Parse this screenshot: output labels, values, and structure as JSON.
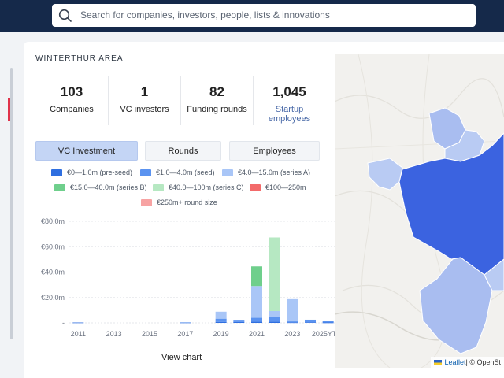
{
  "search": {
    "placeholder": "Search for companies, investors, people, lists & innovations"
  },
  "area": {
    "title": "WINTERTHUR AREA"
  },
  "stats": [
    {
      "value": "103",
      "label": "Companies"
    },
    {
      "value": "1",
      "label": "VC investors"
    },
    {
      "value": "82",
      "label": "Funding rounds"
    },
    {
      "value": "1,045",
      "label": "Startup employees"
    }
  ],
  "tabs": [
    {
      "label": "VC Investment",
      "active": true
    },
    {
      "label": "Rounds",
      "active": false
    },
    {
      "label": "Employees",
      "active": false
    }
  ],
  "legend": [
    {
      "label": "€0—1.0m (pre-seed)",
      "color": "#2f6fe0"
    },
    {
      "label": "€1.0—4.0m (seed)",
      "color": "#5b93f0"
    },
    {
      "label": "€4.0—15.0m (series A)",
      "color": "#a9c6f7"
    },
    {
      "label": "€15.0—40.0m (series B)",
      "color": "#6fcf8c"
    },
    {
      "label": "€40.0—100m (series C)",
      "color": "#b6e8c2"
    },
    {
      "label": "€100—250m",
      "color": "#f36a6a"
    },
    {
      "label": "€250m+ round size",
      "color": "#f7a3a3"
    }
  ],
  "chart_data": {
    "type": "bar",
    "stacked": true,
    "categories": [
      "2011",
      "2012",
      "2013",
      "2014",
      "2015",
      "2016",
      "2017",
      "2018",
      "2019",
      "2020",
      "2021",
      "2022",
      "2023",
      "2024",
      "2025YTD*"
    ],
    "x_tick_labels": [
      "2011",
      "2013",
      "2015",
      "2017",
      "2019",
      "2021",
      "2023",
      "2025YTD*"
    ],
    "y_tick_labels": [
      "€80.0m",
      "€60.0m",
      "€40.0m",
      "€20.0m",
      "-"
    ],
    "ylim": [
      0,
      80
    ],
    "series": [
      {
        "name": "€0—1.0m (pre-seed)",
        "color": "#2f6fe0",
        "values": [
          0.3,
          0,
          0,
          0,
          0,
          0,
          0.3,
          0,
          0.8,
          0.8,
          1.0,
          1.0,
          0.4,
          0.5,
          0.3
        ]
      },
      {
        "name": "€1.0—4.0m (seed)",
        "color": "#5b93f0",
        "values": [
          0,
          0,
          0,
          0,
          0,
          0,
          0,
          0,
          2.5,
          1.6,
          3.0,
          3.8,
          0.8,
          2.0,
          1.2
        ]
      },
      {
        "name": "€4.0—15.0m (series A)",
        "color": "#a9c6f7",
        "values": [
          0,
          0,
          0,
          0,
          0,
          0,
          0.3,
          0,
          5.5,
          0,
          25.0,
          4.5,
          17.5,
          0,
          0
        ]
      },
      {
        "name": "€15.0—40.0m (series B)",
        "color": "#6fcf8c",
        "values": [
          0,
          0,
          0,
          0,
          0,
          0,
          0,
          0,
          0,
          0,
          15.5,
          0,
          0,
          0,
          0
        ]
      },
      {
        "name": "€40.0—100m (series C)",
        "color": "#b6e8c2",
        "values": [
          0,
          0,
          0,
          0,
          0,
          0,
          0,
          0,
          0,
          0,
          0,
          58.0,
          0,
          0,
          0
        ]
      }
    ]
  },
  "view_chart": {
    "label": "View chart"
  },
  "map": {
    "attribution_leaflet": "Leaflet",
    "attribution_sep": " | © OpenSt"
  }
}
